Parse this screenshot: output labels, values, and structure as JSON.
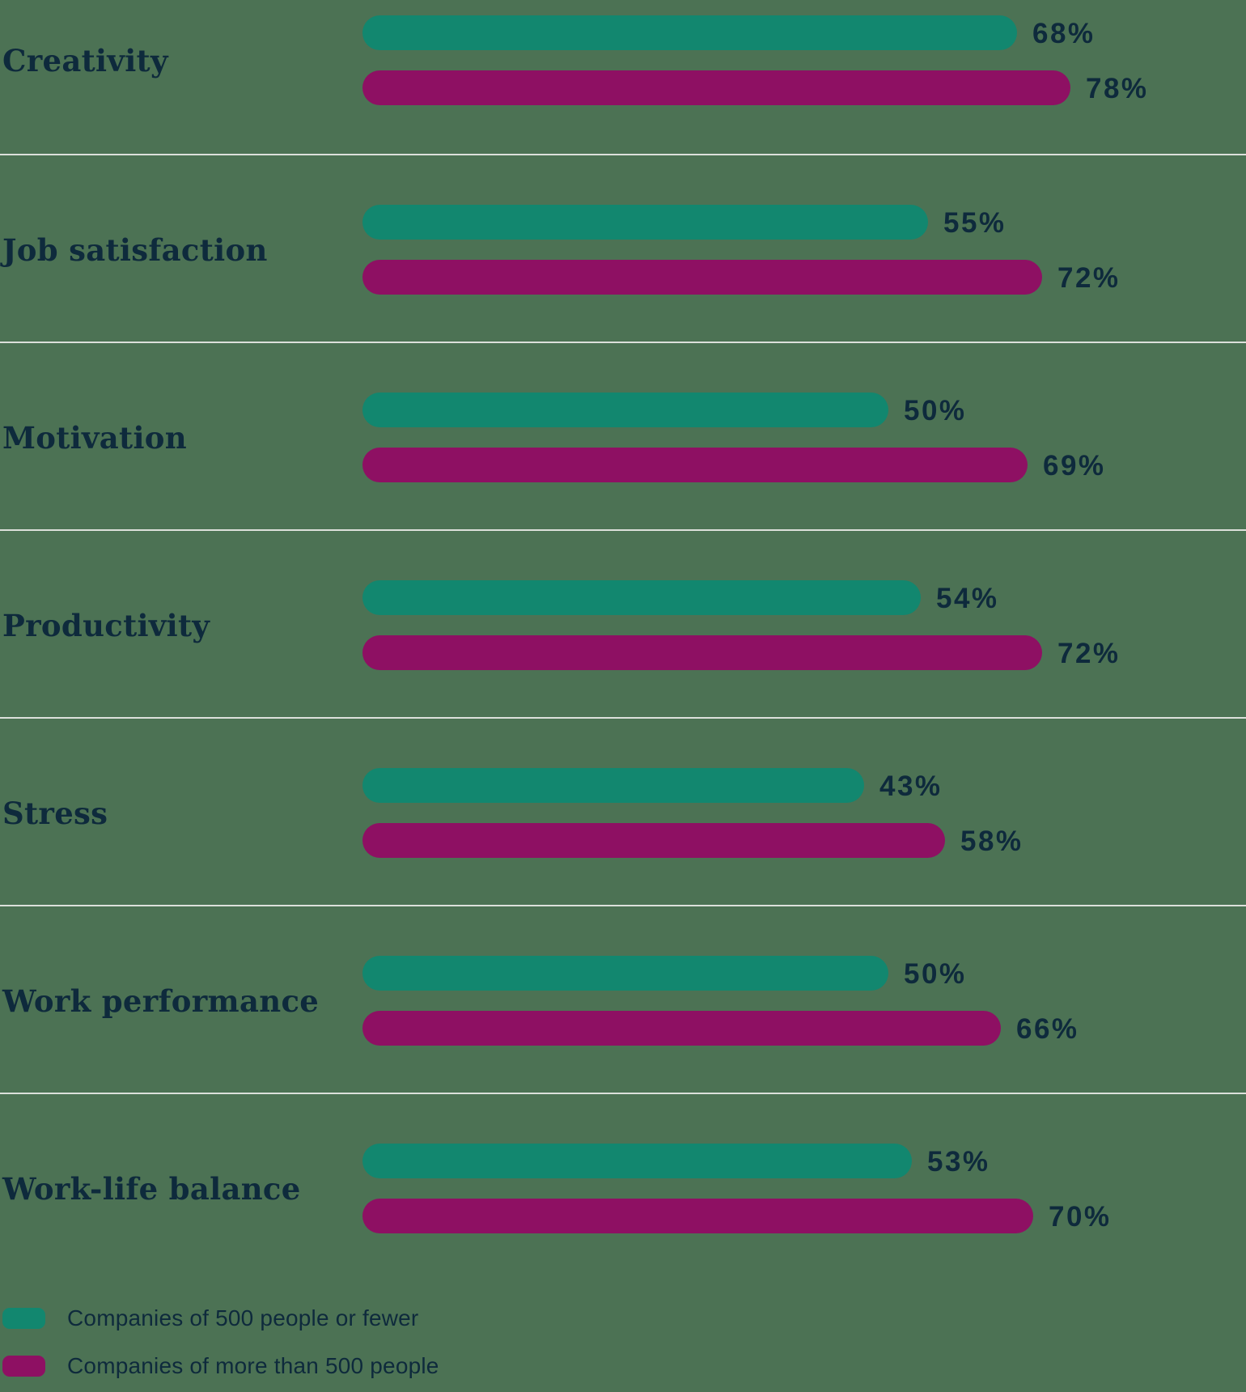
{
  "chart_data": {
    "type": "bar",
    "orientation": "horizontal",
    "categories": [
      "Creativity",
      "Job satisfaction",
      "Motivation",
      "Productivity",
      "Stress",
      "Work performance",
      "Work-life balance"
    ],
    "series": [
      {
        "name": "Companies of 500 people or fewer",
        "color": "#12876F",
        "values": [
          68,
          55,
          50,
          54,
          43,
          50,
          53
        ]
      },
      {
        "name": "Companies of more than 500 people",
        "color": "#8E1063",
        "values": [
          78,
          72,
          69,
          72,
          58,
          66,
          70
        ]
      }
    ],
    "value_suffix": "%",
    "value_labels_shown": true,
    "axes_shown": false,
    "grid": "horizontal-row-dividers",
    "legend_position": "bottom-left"
  },
  "colors": {
    "background": "#4C7254",
    "series_small_companies": "#12876F",
    "series_large_companies": "#8E1063",
    "text": "#0E2A3C",
    "divider": "#DCE0DB"
  }
}
